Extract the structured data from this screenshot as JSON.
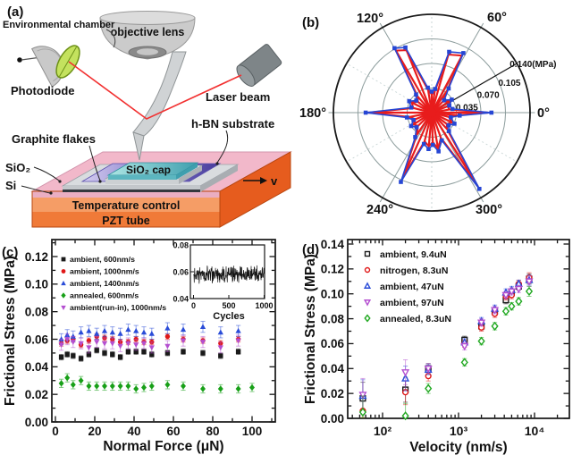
{
  "figure": {
    "background": "#ffffff",
    "panel_labels": {
      "a": "(a)",
      "b": "(b)",
      "c": "(c)",
      "d": "(d)"
    }
  },
  "panel_a": {
    "labels": {
      "environmental_chamber": "Environmental chamber",
      "objective_lens": "objective lens",
      "photodiode": "Photodiode",
      "laser_beam": "Laser beam",
      "hbn_substrate": "h-BN substrate",
      "graphite_flakes": "Graphite flakes",
      "sio2_cap": "SiO₂ cap",
      "sio2": "SiO₂",
      "si": "Si",
      "temperature_control": "Temperature control",
      "pzt_tube": "PZT tube",
      "velocity_arrow": "v"
    },
    "colors": {
      "laser_beam": "#f23030",
      "lens_green": "#c4e25e",
      "stage_pink": "#f2b8ca",
      "temperature_band": "#f59d66",
      "pzt_band": "#f07a38",
      "stage_side_orange": "#e65c1e",
      "hbn_purple_mid": "#7e72c6",
      "sio2_cap_teal": "#7ecdd0",
      "platform_silver": "#d9dcdf"
    }
  },
  "chart_data": [
    {
      "id": "b",
      "type": "line",
      "polar": true,
      "units": "MPa",
      "rmax": 0.14,
      "angle_ticks": [
        0,
        60,
        120,
        180,
        240,
        300
      ],
      "angle_tick_labels": [
        "0°",
        "60°",
        "120°",
        "180°",
        "240°",
        "300°"
      ],
      "radial_ticks": [
        0.035,
        0.07,
        0.105,
        0.14
      ],
      "radial_tick_labels": [
        "0.035",
        "0.070",
        "0.105",
        "0.140(MPa)"
      ],
      "series": [
        {
          "name": "friction-anisotropy-red",
          "color": "#e81c1c",
          "marker": "none",
          "points": [
            [
              0,
              0.08
            ],
            [
              10,
              0.026
            ],
            [
              22,
              0.024
            ],
            [
              33,
              0.03
            ],
            [
              45,
              0.022
            ],
            [
              55,
              0.038
            ],
            [
              62,
              0.092
            ],
            [
              74,
              0.086
            ],
            [
              82,
              0.03
            ],
            [
              90,
              0.026
            ],
            [
              99,
              0.032
            ],
            [
              112,
              0.096
            ],
            [
              120,
              0.102
            ],
            [
              131,
              0.03
            ],
            [
              142,
              0.025
            ],
            [
              153,
              0.032
            ],
            [
              166,
              0.027
            ],
            [
              180,
              0.09
            ],
            [
              191,
              0.032
            ],
            [
              202,
              0.025
            ],
            [
              213,
              0.031
            ],
            [
              224,
              0.027
            ],
            [
              236,
              0.038
            ],
            [
              246,
              0.104
            ],
            [
              256,
              0.042
            ],
            [
              265,
              0.048
            ],
            [
              272,
              0.042
            ],
            [
              280,
              0.052
            ],
            [
              290,
              0.038
            ],
            [
              302,
              0.124
            ],
            [
              313,
              0.032
            ],
            [
              323,
              0.027
            ],
            [
              334,
              0.032
            ],
            [
              346,
              0.025
            ],
            [
              354,
              0.036
            ]
          ]
        },
        {
          "name": "friction-anisotropy-blue",
          "color": "#2646d4",
          "marker": "square",
          "points": [
            [
              0,
              0.085
            ],
            [
              10,
              0.03
            ],
            [
              22,
              0.027
            ],
            [
              33,
              0.034
            ],
            [
              45,
              0.025
            ],
            [
              55,
              0.042
            ],
            [
              62,
              0.096
            ],
            [
              74,
              0.09
            ],
            [
              82,
              0.034
            ],
            [
              90,
              0.03
            ],
            [
              99,
              0.036
            ],
            [
              112,
              0.1
            ],
            [
              120,
              0.106
            ],
            [
              131,
              0.034
            ],
            [
              142,
              0.028
            ],
            [
              153,
              0.036
            ],
            [
              166,
              0.03
            ],
            [
              180,
              0.094
            ],
            [
              191,
              0.036
            ],
            [
              202,
              0.028
            ],
            [
              213,
              0.035
            ],
            [
              224,
              0.03
            ],
            [
              236,
              0.042
            ],
            [
              246,
              0.108
            ],
            [
              256,
              0.046
            ],
            [
              265,
              0.052
            ],
            [
              272,
              0.046
            ],
            [
              280,
              0.056
            ],
            [
              290,
              0.042
            ],
            [
              302,
              0.128
            ],
            [
              313,
              0.036
            ],
            [
              323,
              0.03
            ],
            [
              334,
              0.036
            ],
            [
              346,
              0.028
            ],
            [
              354,
              0.04
            ]
          ]
        }
      ]
    },
    {
      "id": "c",
      "type": "scatter",
      "xlabel": "Normal Force (μN)",
      "ylabel": "Frictional Stress (MPa)",
      "xlim": [
        0,
        112
      ],
      "ylim": [
        0,
        0.132
      ],
      "xticks": [
        0,
        20,
        40,
        60,
        80,
        100
      ],
      "xtick_labels": [
        "0",
        "20",
        "40",
        "60",
        "80",
        "100"
      ],
      "xminor": [
        10,
        30,
        50,
        70,
        90,
        110
      ],
      "yticks": [
        0,
        0.02,
        0.04,
        0.06,
        0.08,
        0.1,
        0.12
      ],
      "ytick_labels": [
        "0.00",
        "0.02",
        "0.04",
        "0.06",
        "0.08",
        "0.10",
        "0.12"
      ],
      "yminor": [
        0.01,
        0.03,
        0.05,
        0.07,
        0.09,
        0.11,
        0.13
      ],
      "series": [
        {
          "label": "ambient, 600nm/s",
          "color": "#1a1a1a",
          "marker": "square",
          "filled": true,
          "err": 0.002,
          "x": [
            3,
            6,
            9,
            13,
            17,
            21,
            25,
            29,
            33,
            37,
            41,
            45,
            49,
            57,
            65,
            75,
            84,
            93
          ],
          "y": [
            0.047,
            0.049,
            0.048,
            0.046,
            0.049,
            0.052,
            0.05,
            0.049,
            0.047,
            0.051,
            0.051,
            0.051,
            0.049,
            0.05,
            0.051,
            0.05,
            0.048,
            0.051
          ]
        },
        {
          "label": "ambient, 1000nm/s",
          "color": "#e01818",
          "marker": "circle",
          "filled": true,
          "err": 0.002,
          "x": [
            3,
            6,
            9,
            13,
            17,
            21,
            25,
            29,
            33,
            37,
            41,
            45,
            49,
            57,
            65,
            75,
            84,
            93
          ],
          "y": [
            0.057,
            0.059,
            0.06,
            0.056,
            0.059,
            0.062,
            0.061,
            0.06,
            0.058,
            0.058,
            0.06,
            0.058,
            0.058,
            0.062,
            0.06,
            0.059,
            0.057,
            0.06
          ]
        },
        {
          "label": "ambient, 1400nm/s",
          "color": "#2a4cd8",
          "marker": "triangle-up",
          "filled": true,
          "err": 0.004,
          "x": [
            3,
            6,
            9,
            13,
            17,
            21,
            25,
            29,
            33,
            37,
            41,
            45,
            49,
            57,
            65,
            75,
            84,
            93
          ],
          "y": [
            0.06,
            0.063,
            0.062,
            0.065,
            0.066,
            0.064,
            0.066,
            0.065,
            0.064,
            0.067,
            0.066,
            0.065,
            0.064,
            0.068,
            0.067,
            0.069,
            0.065,
            0.066
          ]
        },
        {
          "label": "annealed, 600nm/s",
          "color": "#18a018",
          "marker": "diamond",
          "filled": true,
          "err": 0.003,
          "x": [
            3,
            6,
            9,
            13,
            17,
            21,
            25,
            29,
            33,
            37,
            41,
            45,
            49,
            57,
            65,
            75,
            84,
            93,
            100
          ],
          "y": [
            0.028,
            0.032,
            0.027,
            0.03,
            0.026,
            0.026,
            0.026,
            0.026,
            0.026,
            0.026,
            0.024,
            0.025,
            0.026,
            0.027,
            0.026,
            0.024,
            0.024,
            0.024,
            0.025
          ]
        },
        {
          "label": "ambient(run-in), 1000nm/s",
          "color": "#b44fd0",
          "marker": "triangle-down",
          "filled": true,
          "err": 0.004,
          "x": [
            3,
            6,
            9,
            13,
            17,
            21,
            25,
            29,
            33,
            37,
            41,
            45,
            49,
            57,
            65,
            75,
            84,
            93
          ],
          "y": [
            0.056,
            0.06,
            0.058,
            0.057,
            0.054,
            0.058,
            0.057,
            0.057,
            0.055,
            0.057,
            0.056,
            0.057,
            0.054,
            0.055,
            0.059,
            0.058,
            0.054,
            0.059
          ]
        }
      ]
    },
    {
      "id": "c_inset",
      "type": "line",
      "xlabel": "Cycles",
      "xlim": [
        0,
        1100
      ],
      "ylim": [
        0.04,
        0.08
      ],
      "xticks": [
        0,
        500,
        1000
      ],
      "xtick_labels": [
        "0",
        "500",
        "1000"
      ],
      "yticks": [
        0.04,
        0.06,
        0.08
      ],
      "ytick_labels": [
        "0.04",
        "0.06",
        "0.08"
      ],
      "trace": {
        "color": "#161616",
        "mean": 0.058,
        "amplitude": 0.0075,
        "points": 300
      }
    },
    {
      "id": "d",
      "type": "scatter",
      "xscale": "log",
      "xlabel": "Velocity (nm/s)",
      "ylabel": "Frictional Stress (MPa)",
      "xlim": [
        35,
        28000
      ],
      "ylim": [
        0,
        0.1435
      ],
      "xticks": [
        100,
        1000,
        10000
      ],
      "xtick_labels": [
        "10²",
        "10³",
        "10⁴"
      ],
      "xminor": [
        40,
        50,
        60,
        70,
        80,
        90,
        200,
        300,
        400,
        500,
        600,
        700,
        800,
        900,
        2000,
        3000,
        4000,
        5000,
        6000,
        7000,
        8000,
        9000,
        20000
      ],
      "yticks": [
        0,
        0.02,
        0.04,
        0.06,
        0.08,
        0.1,
        0.12,
        0.14
      ],
      "ytick_labels": [
        "0.00",
        "0.02",
        "0.04",
        "0.06",
        "0.08",
        "0.10",
        "0.12",
        "0.14"
      ],
      "yminor": [
        0.01,
        0.03,
        0.05,
        0.07,
        0.09,
        0.11,
        0.13
      ],
      "errors": [
        0.013,
        0.01,
        0.004,
        0.003,
        0.003,
        0.003,
        0.003,
        0.003,
        0.003,
        0.004
      ],
      "series": [
        {
          "label": "ambient, 9.4uN",
          "color": "#1a1a1a",
          "marker": "square",
          "filled": false,
          "x": [
            55,
            200,
            400,
            1200,
            2000,
            3000,
            4200,
            5000,
            6200,
            8500
          ],
          "y": [
            0.016,
            0.023,
            0.04,
            0.063,
            0.074,
            0.086,
            0.095,
            0.101,
            0.106,
            0.112
          ]
        },
        {
          "label": "nitrogen, 8.3uN",
          "color": "#e01818",
          "marker": "circle",
          "filled": false,
          "x": [
            55,
            200,
            400,
            1200,
            2000,
            3000,
            4200,
            5000,
            6200,
            8500
          ],
          "y": [
            0.006,
            0.021,
            0.034,
            0.06,
            0.073,
            0.084,
            0.098,
            0.099,
            0.108,
            0.113
          ]
        },
        {
          "label": "ambient, 47uN",
          "color": "#2a4cd8",
          "marker": "triangle-up",
          "filled": false,
          "x": [
            55,
            200,
            400,
            1200,
            2000,
            3000,
            4200,
            5000,
            6200,
            8500
          ],
          "y": [
            0.018,
            0.032,
            0.039,
            0.061,
            0.078,
            0.088,
            0.101,
            0.103,
            0.108,
            0.111
          ]
        },
        {
          "label": "ambient, 97uN",
          "color": "#b44fd0",
          "marker": "triangle-down",
          "filled": false,
          "x": [
            55,
            200,
            400,
            1200,
            2000,
            3000,
            4200,
            5000,
            6200,
            8500
          ],
          "y": [
            0.019,
            0.037,
            0.04,
            0.058,
            0.077,
            0.087,
            0.099,
            0.102,
            0.104,
            0.11
          ]
        },
        {
          "label": "annealed, 8.3uN",
          "color": "#20a820",
          "marker": "diamond",
          "filled": false,
          "x": [
            55,
            200,
            400,
            1200,
            2000,
            3000,
            4200,
            5000,
            6200,
            8500
          ],
          "y": [
            0.005,
            0.002,
            0.024,
            0.045,
            0.062,
            0.074,
            0.086,
            0.09,
            0.094,
            0.102
          ]
        }
      ]
    }
  ]
}
